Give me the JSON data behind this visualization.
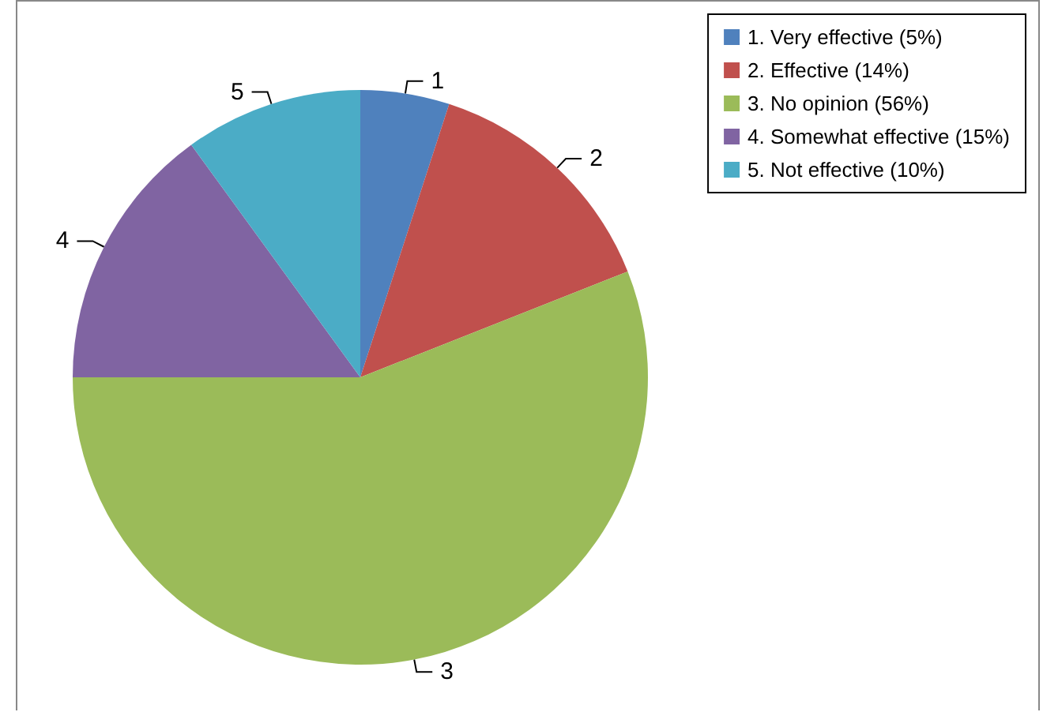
{
  "chart_data": {
    "type": "pie",
    "categories": [
      "1. Very effective (5%)",
      "2. Effective (14%)",
      "3. No opinion (56%)",
      "4. Somewhat effective (15%)",
      "5. Not effective (10%)"
    ],
    "values": [
      5,
      14,
      56,
      15,
      10
    ],
    "colors": [
      "#4f81bd",
      "#c0504d",
      "#9bbb59",
      "#8064a2",
      "#4bacc6"
    ],
    "annotations": [
      "1",
      "2",
      "3",
      "4",
      "5"
    ],
    "legend": "top right"
  }
}
